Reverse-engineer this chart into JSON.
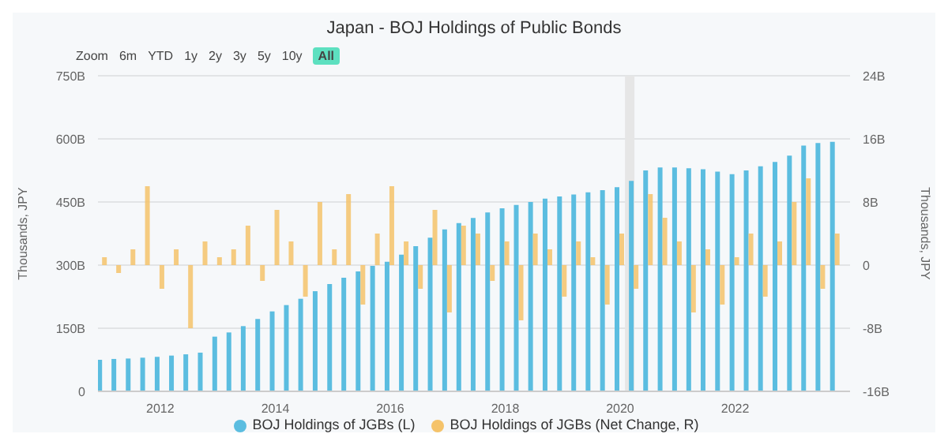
{
  "chart_data": {
    "type": "bar",
    "title": "Japan - BOJ Holdings of Public Bonds",
    "annotations": [
      "Zoom",
      "6m",
      "YTD",
      "1y",
      "2y",
      "3y",
      "5y",
      "10y",
      "All"
    ],
    "ylabel": "Thousands, JPY",
    "y2label": "Thousands, JPY",
    "x": [
      "2011-01",
      "2011-04",
      "2011-07",
      "2011-10",
      "2012-01",
      "2012-04",
      "2012-07",
      "2012-10",
      "2013-01",
      "2013-04",
      "2013-07",
      "2013-10",
      "2014-01",
      "2014-04",
      "2014-07",
      "2014-10",
      "2015-01",
      "2015-04",
      "2015-07",
      "2015-10",
      "2016-01",
      "2016-04",
      "2016-07",
      "2016-10",
      "2017-01",
      "2017-04",
      "2017-07",
      "2017-10",
      "2018-01",
      "2018-04",
      "2018-07",
      "2018-10",
      "2019-01",
      "2019-04",
      "2019-07",
      "2019-10",
      "2020-01",
      "2020-04",
      "2020-07",
      "2020-10",
      "2021-01",
      "2021-04",
      "2021-07",
      "2021-10",
      "2022-01",
      "2022-04",
      "2022-07",
      "2022-10",
      "2023-01",
      "2023-04",
      "2023-07",
      "2023-10"
    ],
    "series": [
      {
        "name": "BOJ Holdings of JGBs (L)",
        "color": "#5bbde0",
        "values": [
          75,
          77,
          78,
          80,
          82,
          85,
          88,
          92,
          130,
          140,
          155,
          172,
          190,
          205,
          220,
          238,
          255,
          270,
          285,
          298,
          308,
          325,
          345,
          365,
          385,
          400,
          412,
          425,
          435,
          443,
          450,
          458,
          463,
          468,
          473,
          478,
          485,
          500,
          525,
          532,
          532,
          530,
          528,
          522,
          516,
          525,
          535,
          545,
          560,
          584,
          590,
          593
        ]
      },
      {
        "name": "BOJ Holdings of JGBs (Net Change, R)",
        "color": "#f5c36a",
        "axis": "y2",
        "values": [
          1,
          -1,
          2,
          10,
          -3,
          2,
          -8,
          3,
          1,
          2,
          5,
          -2,
          7,
          3,
          -4,
          8,
          2,
          9,
          -5,
          4,
          10,
          3,
          -3,
          7,
          -6,
          5,
          4,
          -2,
          3,
          -7,
          4,
          2,
          -4,
          3,
          1,
          -5,
          4,
          -3,
          9,
          6,
          3,
          -6,
          2,
          -5,
          1,
          4,
          -4,
          3,
          8,
          11,
          -3,
          4
        ]
      }
    ],
    "xlim": [
      "2010-12",
      "2024-01"
    ],
    "xticks": [
      "2012",
      "2014",
      "2016",
      "2018",
      "2020",
      "2022"
    ],
    "ylim": [
      0,
      750
    ],
    "yticks": [
      {
        "value": 0,
        "label": "0"
      },
      {
        "value": 150,
        "label": "150B"
      },
      {
        "value": 300,
        "label": "300B"
      },
      {
        "value": 450,
        "label": "450B"
      },
      {
        "value": 600,
        "label": "600B"
      },
      {
        "value": 750,
        "label": "750B"
      }
    ],
    "y2lim": [
      -16,
      24
    ],
    "y2ticks": [
      {
        "value": -16,
        "label": "-16B"
      },
      {
        "value": -8,
        "label": "-8B"
      },
      {
        "value": 0,
        "label": "0"
      },
      {
        "value": 8,
        "label": "8B"
      },
      {
        "value": 16,
        "label": "16B"
      },
      {
        "value": 24,
        "label": "24B"
      }
    ],
    "bands": [
      {
        "axis": "x",
        "from": "2020-02",
        "to": "2020-04",
        "color": "#e6e6e6"
      }
    ],
    "grid": "y",
    "legend": "bottom",
    "marker": "circle"
  }
}
